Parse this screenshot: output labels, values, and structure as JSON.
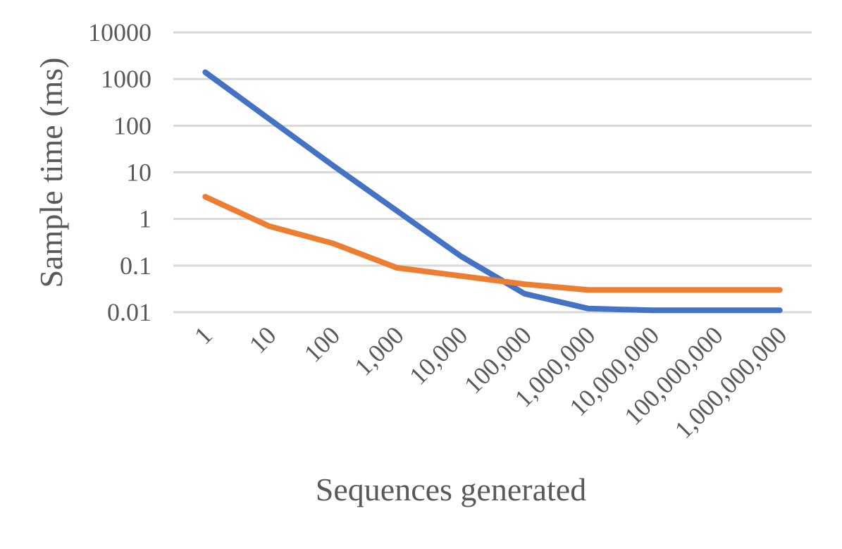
{
  "chart_data": {
    "type": "line",
    "title": "",
    "xlabel": "Sequences generated",
    "ylabel": "Sample time (ms)",
    "y_scale": "log",
    "ylim": [
      0.01,
      10000
    ],
    "y_ticks": [
      "10000",
      "1000",
      "100",
      "10",
      "1",
      "0.1",
      "0.01"
    ],
    "grid": true,
    "legend": "none",
    "categories": [
      "1",
      "10",
      "100",
      "1,000",
      "10,000",
      "100,000",
      "1,000,000",
      "10,000,000",
      "100,000,000",
      "1,000,000,000"
    ],
    "series": [
      {
        "color": "#4472c4",
        "values": [
          1400,
          140,
          14,
          1.5,
          0.16,
          0.025,
          0.012,
          0.011,
          0.011,
          0.011
        ]
      },
      {
        "color": "#ed7d31",
        "values": [
          3,
          0.7,
          0.3,
          0.09,
          0.06,
          0.04,
          0.03,
          0.03,
          0.03,
          0.03
        ]
      }
    ]
  }
}
